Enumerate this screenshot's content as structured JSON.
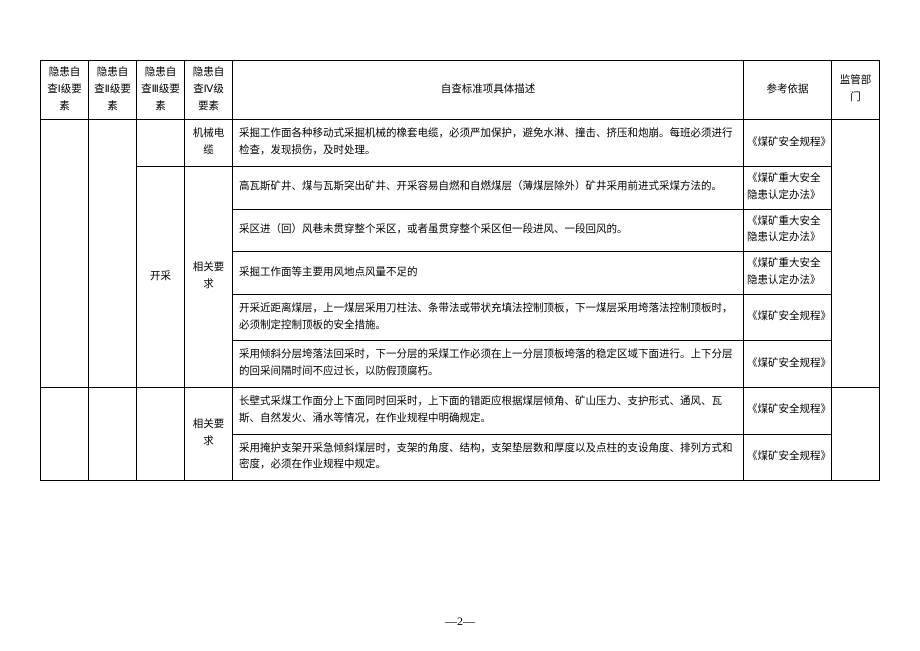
{
  "headers": {
    "col1": "隐患自查Ⅰ级要素",
    "col2": "隐患自查Ⅱ级要素",
    "col3": "隐患自查Ⅲ级要素",
    "col4": "隐患自查Ⅳ级要素",
    "col5": "自查标准项具体描述",
    "col6": "参考依据",
    "col7": "监管部门"
  },
  "rows": [
    {
      "lv3": "",
      "lv4": "机械电缆",
      "desc": "采掘工作面各种移动式采掘机械的橡套电缆，必须严加保护，避免水淋、撞击、挤压和炮崩。每班必须进行检查，发现损伤，及时处理。",
      "ref": "《煤矿安全规程》"
    },
    {
      "lv3": "开采",
      "lv4": "相关要求",
      "desc": "高瓦斯矿井、煤与瓦斯突出矿井、开采容易自燃和自燃煤层（薄煤层除外）矿井采用前进式采煤方法的。",
      "ref": "《煤矿重大安全隐患认定办法》"
    },
    {
      "desc": "采区进（回）风巷未贯穿整个采区，或者虽贯穿整个采区但一段进风、一段回风的。",
      "ref": "《煤矿重大安全隐患认定办法》"
    },
    {
      "desc": "采掘工作面等主要用风地点风量不足的",
      "ref": "《煤矿重大安全隐患认定办法》"
    },
    {
      "desc": "开采近距离煤层，上一煤层采用刀柱法、条带法或带状充填法控制顶板，下一煤层采用垮落法控制顶板时，必须制定控制顶板的安全措施。",
      "ref": "《煤矿安全规程》"
    },
    {
      "desc": "采用倾斜分层垮落法回采时，下一分层的采煤工作必须在上一分层顶板垮落的稳定区域下面进行。上下分层的回采间隔时间不应过长，以防假顶腐朽。",
      "ref": "《煤矿安全规程》"
    },
    {
      "lv4": "相关要求",
      "desc": "长壁式采煤工作面分上下面同时回采时，上下面的错距应根据煤层倾角、矿山压力、支护形式、通风、瓦斯、自然发火、涌水等情况，在作业规程中明确规定。",
      "ref": "《煤矿安全规程》"
    },
    {
      "desc": "采用掩护支架开采急倾斜煤层时，支架的角度、结构，支架垫层数和厚度以及点柱的支设角度、排列方式和密度，必须在作业规程中规定。",
      "ref": "《煤矿安全规程》"
    }
  ],
  "pageNumber": "—2—"
}
